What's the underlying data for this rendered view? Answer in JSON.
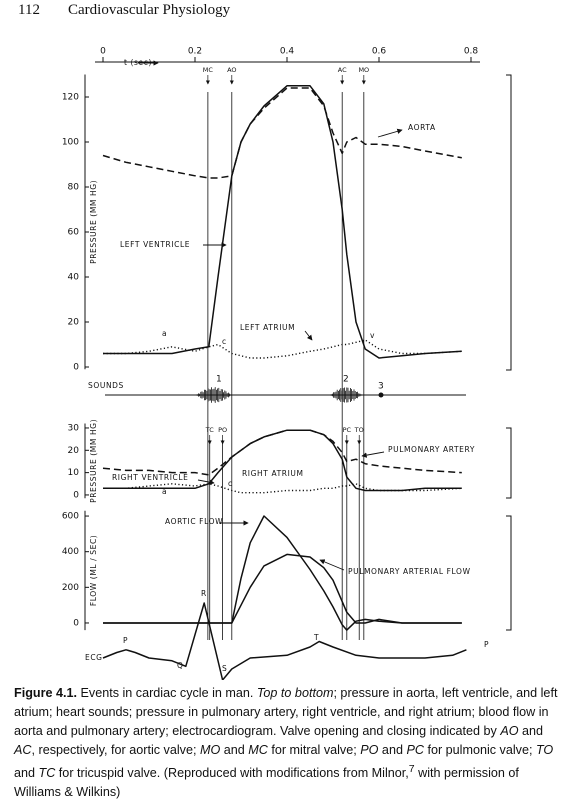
{
  "header": {
    "page_number": 112,
    "running_title": "Cardiovascular Physiology"
  },
  "chart_data": [
    {
      "type": "line",
      "xlabel": "t (sec)",
      "ylabel": "PRESSURE (MM HG)",
      "xlim": [
        0,
        0.8
      ],
      "xticks": [
        0,
        0.2,
        0.4,
        0.6,
        0.8
      ],
      "ylim": [
        -1,
        130
      ],
      "yticks": [
        0,
        20,
        40,
        60,
        80,
        100,
        120
      ],
      "x": [
        0,
        0.05,
        0.1,
        0.15,
        0.2,
        0.23,
        0.25,
        0.28,
        0.3,
        0.32,
        0.35,
        0.4,
        0.45,
        0.48,
        0.5,
        0.52,
        0.53,
        0.55,
        0.57,
        0.6,
        0.65,
        0.7,
        0.78
      ],
      "series": [
        {
          "name": "AORTA",
          "color": "#111111",
          "line_style": "dashed",
          "values": [
            94,
            91,
            89,
            87,
            85,
            84,
            84,
            85,
            100,
            108,
            115,
            124,
            124,
            116,
            104,
            95,
            100,
            102,
            99,
            99,
            98,
            96,
            93
          ]
        },
        {
          "name": "LEFT VENTRICLE",
          "color": "#111111",
          "line_style": "solid",
          "values": [
            6,
            6,
            6,
            6,
            8,
            9,
            40,
            85,
            100,
            108,
            116,
            125,
            125,
            117,
            100,
            70,
            50,
            20,
            8,
            4,
            5,
            6,
            7
          ]
        },
        {
          "name": "LEFT ATRIUM",
          "color": "#111111",
          "line_style": "dotted",
          "values": [
            6,
            6,
            7,
            9,
            7,
            9,
            10,
            6,
            5,
            4,
            4,
            5,
            7,
            8,
            9,
            10,
            10,
            11,
            12,
            8,
            6,
            6,
            7
          ]
        }
      ],
      "annotations": [
        "a",
        "c",
        "v"
      ],
      "valves": [
        {
          "label": "MC",
          "x": 0.228
        },
        {
          "label": "AO",
          "x": 0.28
        },
        {
          "label": "AC",
          "x": 0.52
        },
        {
          "label": "MO",
          "x": 0.567
        }
      ]
    },
    {
      "type": "line",
      "ylabel": "PRESSURE (MM HG)",
      "xlim": [
        0,
        0.8
      ],
      "ylim": [
        -1.5,
        32
      ],
      "yticks": [
        0,
        10,
        20,
        30
      ],
      "x": [
        0,
        0.05,
        0.1,
        0.15,
        0.2,
        0.23,
        0.25,
        0.28,
        0.3,
        0.32,
        0.35,
        0.4,
        0.45,
        0.48,
        0.5,
        0.52,
        0.53,
        0.55,
        0.57,
        0.6,
        0.65,
        0.7,
        0.78
      ],
      "series": [
        {
          "name": "PULMONARY ARTERY",
          "color": "#111111",
          "line_style": "dashed",
          "values": [
            12,
            11,
            11,
            10,
            10,
            9,
            12,
            17,
            20,
            23,
            26,
            29,
            29,
            27,
            24,
            19,
            15,
            16,
            14,
            13,
            12,
            11,
            10
          ]
        },
        {
          "name": "RIGHT VENTRICLE",
          "color": "#111111",
          "line_style": "solid",
          "values": [
            3,
            3,
            3,
            3,
            3,
            5,
            10,
            17,
            20,
            23,
            26,
            29,
            29,
            27,
            23,
            16,
            8,
            3,
            2,
            2,
            2,
            3,
            3
          ]
        },
        {
          "name": "RIGHT ATRIUM",
          "color": "#111111",
          "line_style": "dotted",
          "values": [
            3,
            3,
            4,
            5,
            4,
            5,
            4,
            2,
            1,
            1,
            1,
            2,
            2,
            3,
            3,
            4,
            4,
            5,
            3,
            2,
            2,
            2,
            3
          ]
        }
      ],
      "annotations": [
        "c",
        "a"
      ],
      "valves": [
        {
          "label": "TC",
          "x": 0.232
        },
        {
          "label": "PO",
          "x": 0.26
        },
        {
          "label": "PC",
          "x": 0.53
        },
        {
          "label": "TO",
          "x": 0.557
        }
      ]
    },
    {
      "type": "line",
      "ylabel": "FLOW (ML / SEC)",
      "xlim": [
        0,
        0.8
      ],
      "ylim": [
        -40,
        630
      ],
      "yticks": [
        0,
        200,
        400,
        600
      ],
      "x": [
        0,
        0.05,
        0.1,
        0.15,
        0.2,
        0.23,
        0.25,
        0.28,
        0.3,
        0.32,
        0.35,
        0.4,
        0.45,
        0.48,
        0.5,
        0.52,
        0.53,
        0.55,
        0.57,
        0.6,
        0.65,
        0.7,
        0.78
      ],
      "series": [
        {
          "name": "AORTIC FLOW",
          "color": "#111111",
          "line_style": "solid",
          "values": [
            0,
            0,
            0,
            0,
            0,
            0,
            0,
            0,
            250,
            450,
            600,
            480,
            300,
            180,
            90,
            -10,
            -40,
            10,
            20,
            10,
            0,
            0,
            0
          ]
        },
        {
          "name": "PULMONARY ARTERIAL FLOW",
          "color": "#111111",
          "line_style": "solid",
          "values": [
            0,
            0,
            0,
            0,
            0,
            0,
            0,
            0,
            100,
            200,
            320,
            385,
            370,
            310,
            240,
            120,
            60,
            0,
            0,
            20,
            0,
            0,
            0
          ]
        }
      ]
    },
    {
      "type": "ecg",
      "ylabel": "ECG",
      "xlim": [
        0,
        0.8
      ],
      "x": [
        0,
        0.03,
        0.05,
        0.07,
        0.1,
        0.15,
        0.18,
        0.22,
        0.26,
        0.28,
        0.32,
        0.4,
        0.45,
        0.47,
        0.5,
        0.55,
        0.6,
        0.7,
        0.76,
        0.79
      ],
      "series": [
        {
          "color": "#111111",
          "line_style": "solid",
          "values": [
            0,
            0.1,
            0.15,
            0.1,
            0,
            -0.05,
            -0.15,
            1.0,
            -0.4,
            -0.2,
            0,
            0.05,
            0.2,
            0.3,
            0.2,
            0.05,
            0,
            0,
            0.05,
            0.15
          ]
        }
      ],
      "annotations": [
        "P",
        "Q",
        "R",
        "S",
        "T",
        "P"
      ]
    }
  ],
  "sounds": {
    "label": "SOUNDS",
    "markers": [
      "1",
      "2",
      "3"
    ]
  },
  "caption": {
    "label": "Figure 4.1.",
    "segments": [
      {
        "text": " Events in cardiac cycle in man. "
      },
      {
        "text": "Top to bottom",
        "style": "italic"
      },
      {
        "text": "; pressure in aorta, left ventricle, and left atrium; heart sounds; pressure in pulmonary artery, right ventricle, and right atrium; blood flow in aorta and pulmonary artery; electrocardiogram. Valve opening and closing indicated by "
      },
      {
        "text": "AO",
        "style": "italic"
      },
      {
        "text": " and "
      },
      {
        "text": "AC",
        "style": "italic"
      },
      {
        "text": ", respectively, for aortic valve; "
      },
      {
        "text": "MO",
        "style": "italic"
      },
      {
        "text": " and "
      },
      {
        "text": "MC",
        "style": "italic"
      },
      {
        "text": " for mitral valve; "
      },
      {
        "text": "PO",
        "style": "italic"
      },
      {
        "text": " and "
      },
      {
        "text": "PC",
        "style": "italic"
      },
      {
        "text": " for pulmonic valve; "
      },
      {
        "text": "TO",
        "style": "italic"
      },
      {
        "text": " and "
      },
      {
        "text": "TC",
        "style": "italic"
      },
      {
        "text": " for tricuspid valve. (Reproduced with modifications from Milnor,"
      },
      {
        "text": "7",
        "style": "sup"
      },
      {
        "text": " with permission of Williams & Wilkins)"
      }
    ]
  }
}
